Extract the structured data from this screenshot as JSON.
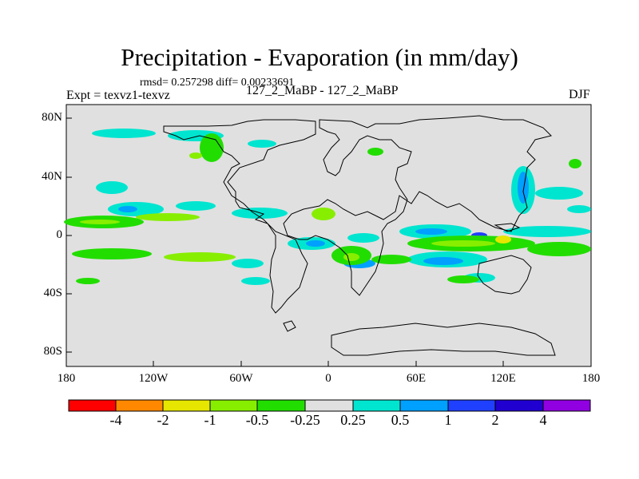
{
  "title": "Precipitation - Evaporation (in mm/day)",
  "stats": "rmsd= 0.257298  diff= 0.00233691",
  "experiment": "Expt = texvz1-texvz",
  "case_label": "127_2_MaBP - 127_2_MaBP",
  "season": "DJF",
  "lat_labels": [
    "80N",
    "40N",
    "0",
    "40S",
    "80S"
  ],
  "lon_labels": [
    "180",
    "120W",
    "60W",
    "0",
    "60E",
    "120E",
    "180"
  ],
  "colorbar": {
    "labels": [
      "-4",
      "-2",
      "-1",
      "-0.5",
      "-0.25",
      "0.25",
      "0.5",
      "1",
      "2",
      "4"
    ],
    "colors": [
      "#ff0000",
      "#ff8800",
      "#e6e600",
      "#88ee00",
      "#22dd00",
      "#e0e0e0",
      "#00e5d0",
      "#00a0ff",
      "#2040ff",
      "#2000d0",
      "#9000e0"
    ]
  },
  "colors": {
    "background": "#e0e0e0",
    "coast": "#000000"
  }
}
